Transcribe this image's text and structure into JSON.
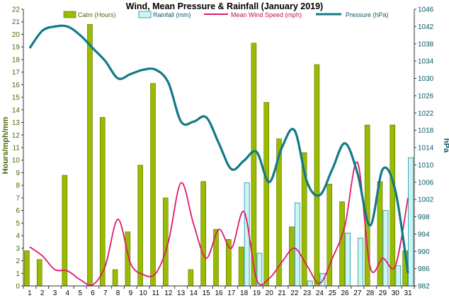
{
  "chart_data": {
    "type": "bar",
    "title": "Wind, Mean Pressure & Rainfall (January 2019)",
    "ylabel_left": "Hours/mph/mm",
    "ylabel_right": "hPa",
    "categories": [
      "1",
      "2",
      "3",
      "4",
      "5",
      "6",
      "7",
      "8",
      "9",
      "10",
      "11",
      "12",
      "13",
      "14",
      "15",
      "16",
      "17",
      "18",
      "19",
      "20",
      "21",
      "22",
      "23",
      "24",
      "25",
      "26",
      "27",
      "28",
      "29",
      "30",
      "31"
    ],
    "y_left": {
      "min": 0,
      "max": 22,
      "step": 1
    },
    "y_right": {
      "min": 982,
      "max": 1046,
      "step": 4
    },
    "grid": false,
    "legend_position": "top",
    "series": [
      {
        "name": "Calm (Hours)",
        "kind": "bar",
        "axis": "left",
        "color": "#99bb00",
        "values": [
          2.8,
          2.1,
          0,
          8.8,
          0,
          20.8,
          13.4,
          1.3,
          4.3,
          9.6,
          16.1,
          7.0,
          0,
          1.3,
          8.3,
          4.5,
          3.7,
          3.1,
          19.3,
          14.6,
          11.7,
          4.7,
          10.6,
          17.6,
          8.1,
          6.7,
          0,
          12.8,
          8.3,
          12.8,
          2.8
        ]
      },
      {
        "name": "Rainfall (mm)",
        "kind": "bar",
        "axis": "left",
        "color": "#ccf5f5",
        "values": [
          0,
          0,
          0,
          0,
          0,
          0,
          0,
          0,
          0,
          0,
          0,
          0,
          0,
          0,
          0,
          0,
          0,
          8.2,
          2.6,
          0,
          0,
          6.6,
          0.4,
          1.0,
          0,
          4.2,
          3.8,
          0,
          6.0,
          1.6,
          10.2
        ]
      },
      {
        "name": "Mean Wind Speed (mph)",
        "kind": "line",
        "axis": "left",
        "color": "#e0186c",
        "values": [
          3.1,
          2.4,
          1.3,
          1.2,
          0.5,
          0.1,
          1.6,
          5.3,
          1.8,
          0.9,
          1.0,
          3.5,
          8.2,
          4.9,
          2.2,
          4.5,
          3.0,
          5.9,
          0.5,
          0.6,
          1.9,
          3.0,
          1.6,
          0.2,
          2.2,
          4.8,
          9.8,
          1.5,
          2.2,
          1.6,
          7.0
        ]
      },
      {
        "name": "Pressure (hPa)",
        "kind": "line",
        "axis": "right",
        "color": "#117a87",
        "values": [
          1037,
          1041,
          1042,
          1042,
          1040,
          1037,
          1034,
          1030,
          1031,
          1032,
          1032,
          1029,
          1020,
          1020,
          1021,
          1015,
          1009,
          1011,
          1013,
          1006,
          1014,
          1018,
          1006,
          1003,
          1009,
          1015,
          1008,
          996,
          1009,
          1004,
          985
        ]
      }
    ]
  }
}
